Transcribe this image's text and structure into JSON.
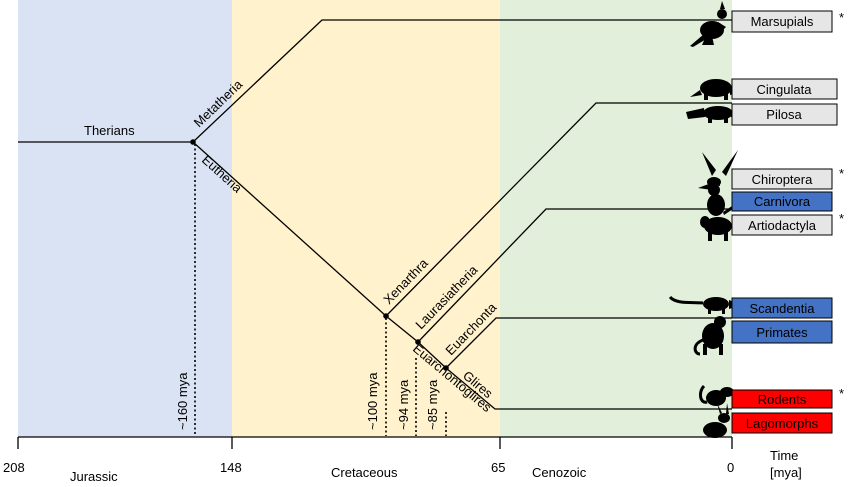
{
  "eras": [
    {
      "name": "Jurassic",
      "color": "#dae3f3"
    },
    {
      "name": "Cretaceous",
      "color": "#fff2cc"
    },
    {
      "name": "Cenozoic",
      "color": "#e2efda"
    }
  ],
  "axis": {
    "ticks": [
      "208",
      "148",
      "65",
      "0"
    ],
    "time_label": "Time",
    "unit_label": "[mya]"
  },
  "nodes": {
    "therians": "Therians",
    "metatheria": "Metatheria",
    "eutheria": "Eutheria",
    "xenarthra": "Xenarthra",
    "laurasiatheria": "Laurasiatheria",
    "euarchonta": "Euarchonta",
    "glires": "Glires",
    "euarchontoglires": "Euarchontoglires"
  },
  "divergences": [
    "~160 mya",
    "~100 mya",
    "~94 mya",
    "~85 mya"
  ],
  "taxa": [
    {
      "name": "Marsupials",
      "color": "#e7e6e6",
      "text_color": "#000000",
      "asterisk": "*",
      "icon": "kangaroo-icon"
    },
    {
      "name": "Cingulata",
      "color": "#e7e6e6",
      "text_color": "#000000",
      "asterisk": "",
      "icon": "armadillo-icon"
    },
    {
      "name": "Pilosa",
      "color": "#e7e6e6",
      "text_color": "#000000",
      "asterisk": "",
      "icon": "anteater-icon"
    },
    {
      "name": "Chiroptera",
      "color": "#e7e6e6",
      "text_color": "#000000",
      "asterisk": "*",
      "icon": "bat-icon"
    },
    {
      "name": "Carnivora",
      "color": "#4472c4",
      "text_color": "#000000",
      "asterisk": "",
      "icon": "cat-icon"
    },
    {
      "name": "Artiodactyla",
      "color": "#e7e6e6",
      "text_color": "#000000",
      "asterisk": "*",
      "icon": "sheep-icon"
    },
    {
      "name": "Scandentia",
      "color": "#4472c4",
      "text_color": "#000000",
      "asterisk": "",
      "icon": "treeshrew-icon"
    },
    {
      "name": "Primates",
      "color": "#4472c4",
      "text_color": "#000000",
      "asterisk": "",
      "icon": "monkey-icon"
    },
    {
      "name": "Rodents",
      "color": "#ff0000",
      "text_color": "#ffffff",
      "asterisk": "*",
      "icon": "rat-icon"
    },
    {
      "name": "Lagomorphs",
      "color": "#ff0000",
      "text_color": "#ffffff",
      "asterisk": "",
      "icon": "rabbit-icon"
    }
  ]
}
